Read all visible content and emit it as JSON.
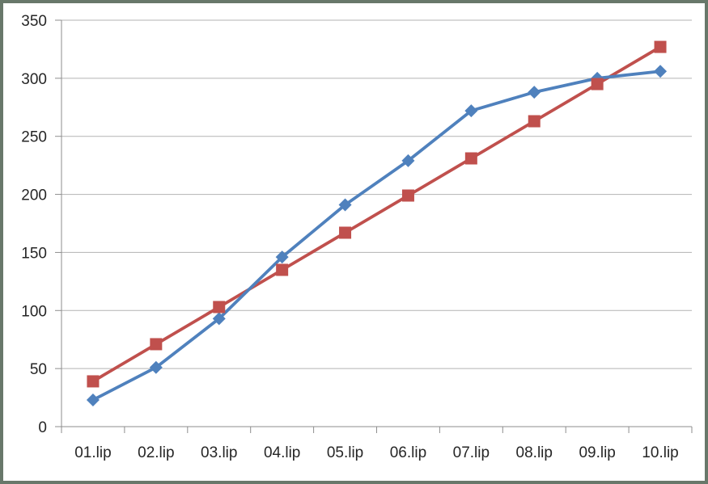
{
  "chart_data": {
    "type": "line",
    "title": "",
    "xlabel": "",
    "ylabel": "",
    "categories": [
      "01.lip",
      "02.lip",
      "03.lip",
      "04.lip",
      "05.lip",
      "06.lip",
      "07.lip",
      "08.lip",
      "09.lip",
      "10.lip"
    ],
    "series": [
      {
        "name": "blue-diamond-series",
        "marker": "diamond",
        "color": "#4f81bd",
        "values": [
          23,
          51,
          93,
          146,
          191,
          229,
          272,
          288,
          300,
          306
        ]
      },
      {
        "name": "red-square-series",
        "marker": "square",
        "color": "#c0504d",
        "values": [
          39,
          71,
          103,
          135,
          167,
          199,
          231,
          263,
          295,
          327
        ]
      }
    ],
    "ylim": [
      0,
      350
    ],
    "yticks": [
      0,
      50,
      100,
      150,
      200,
      250,
      300,
      350
    ],
    "grid": "horizontal-only",
    "legend_position": "none"
  },
  "style": {
    "frame_border_color": "#68786a",
    "background_color": "#ffffff",
    "gridline_color": "#b3b3b3",
    "axis_color": "#8e8e8e",
    "tick_label_color": "#262626"
  }
}
